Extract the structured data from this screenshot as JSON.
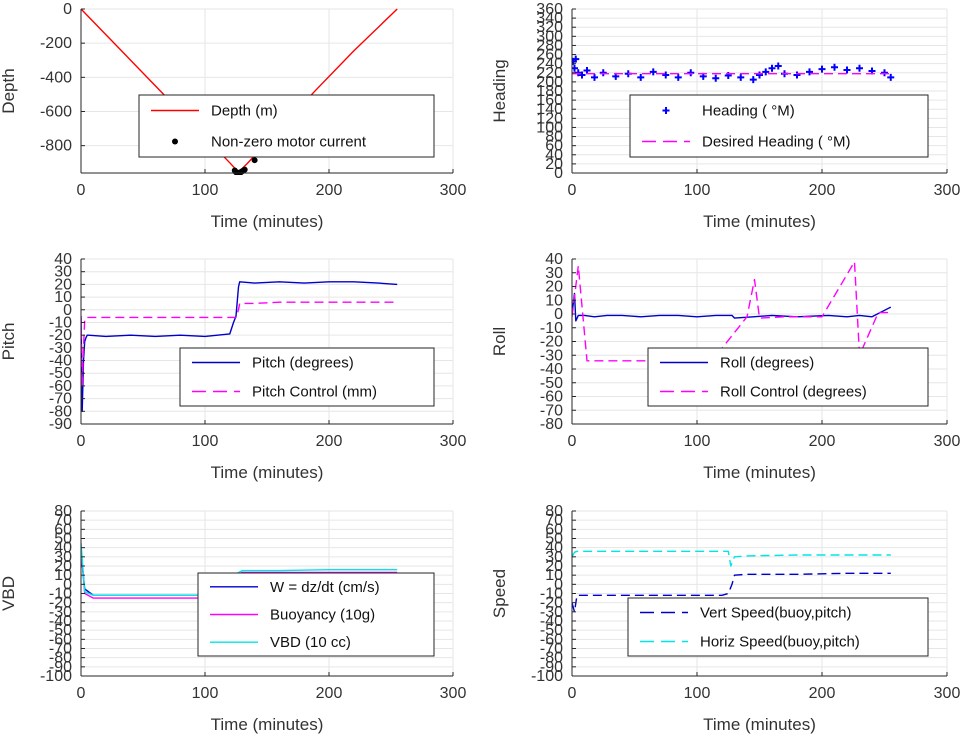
{
  "colors": {
    "depth": "#ff0000",
    "motor": "#000000",
    "heading": "#0000ff",
    "desired": "#ff00ff",
    "pitch": "#0000cc",
    "pitch_ctrl": "#ff00ff",
    "roll": "#0000cc",
    "roll_ctrl": "#ff00ff",
    "w": "#0000cc",
    "buoy": "#ff00ff",
    "vbd": "#00e5e5",
    "vert": "#0000cc",
    "horiz": "#00e5e5",
    "grid": "#e6e6e6",
    "axis": "#262626"
  },
  "chart_data": [
    {
      "id": "depth",
      "type": "line",
      "title": "",
      "xlabel": "Time (minutes)",
      "ylabel": "Depth",
      "xlim": [
        0,
        300
      ],
      "ylim": [
        -960,
        0
      ],
      "xticks": [
        0,
        100,
        200,
        300
      ],
      "yticks": [
        0,
        -200,
        -400,
        -600,
        -800
      ],
      "grid": true,
      "legend_position": "center",
      "series": [
        {
          "name": "Depth (m)",
          "style": "line",
          "color": "depth",
          "x": [
            0,
            30,
            60,
            90,
            120,
            127,
            134,
            160,
            190,
            220,
            255
          ],
          "y": [
            0,
            -225,
            -450,
            -675,
            -900,
            -955,
            -905,
            -700,
            -470,
            -245,
            0
          ]
        },
        {
          "name": "Non-zero motor current",
          "style": "dot",
          "color": "motor",
          "x": [
            124,
            125,
            126,
            127,
            128,
            129,
            130,
            131,
            132,
            140
          ],
          "y": [
            -945,
            -955,
            -958,
            -960,
            -958,
            -955,
            -950,
            -945,
            -940,
            -885
          ]
        }
      ]
    },
    {
      "id": "heading",
      "type": "scatter",
      "title": "",
      "xlabel": "Time (minutes)",
      "ylabel": "Heading",
      "xlim": [
        0,
        300
      ],
      "ylim": [
        0,
        360
      ],
      "xticks": [
        0,
        100,
        200,
        300
      ],
      "yticks": [
        0,
        20,
        40,
        60,
        80,
        100,
        120,
        140,
        160,
        180,
        200,
        220,
        240,
        260,
        280,
        300,
        320,
        340,
        360
      ],
      "grid": true,
      "legend_position": "bottom-right",
      "series": [
        {
          "name": "Heading ( °M)",
          "style": "plus",
          "color": "heading",
          "x": [
            1,
            2,
            3,
            5,
            8,
            12,
            18,
            25,
            35,
            45,
            55,
            65,
            75,
            85,
            95,
            105,
            115,
            125,
            135,
            145,
            150,
            155,
            160,
            165,
            170,
            180,
            190,
            200,
            210,
            220,
            230,
            240,
            250,
            255
          ],
          "y": [
            245,
            230,
            250,
            220,
            215,
            225,
            210,
            220,
            212,
            218,
            210,
            222,
            215,
            210,
            220,
            212,
            208,
            214,
            210,
            205,
            215,
            222,
            230,
            235,
            218,
            215,
            222,
            228,
            232,
            226,
            230,
            224,
            220,
            210
          ]
        },
        {
          "name": "Desired Heading ( °M)",
          "style": "dash",
          "color": "desired",
          "x": [
            0,
            255
          ],
          "y": [
            218,
            218
          ]
        }
      ]
    },
    {
      "id": "pitch",
      "type": "line",
      "title": "",
      "xlabel": "Time (minutes)",
      "ylabel": "Pitch",
      "xlim": [
        0,
        300
      ],
      "ylim": [
        -90,
        40
      ],
      "xticks": [
        0,
        100,
        200,
        300
      ],
      "yticks": [
        40,
        30,
        20,
        10,
        0,
        -10,
        -20,
        -30,
        -40,
        -50,
        -60,
        -70,
        -80,
        -90
      ],
      "grid": true,
      "legend_position": "bottom-right",
      "series": [
        {
          "name": "Pitch (degrees)",
          "style": "line",
          "color": "pitch",
          "x": [
            0,
            1,
            2,
            3,
            4,
            5,
            6,
            20,
            40,
            60,
            80,
            100,
            120,
            123,
            125,
            127,
            128,
            140,
            160,
            180,
            200,
            220,
            240,
            255
          ],
          "y": [
            -5,
            -80,
            -40,
            -25,
            -22,
            -20,
            -20,
            -21,
            -20,
            -21,
            -20,
            -21,
            -19,
            -10,
            -5,
            18,
            22,
            21,
            22,
            21,
            22,
            22,
            21,
            20
          ]
        },
        {
          "name": "Pitch Control (mm)",
          "style": "dash",
          "color": "pitch_ctrl",
          "x": [
            0,
            1,
            2,
            3,
            4,
            125,
            127,
            128,
            140,
            160,
            180,
            200,
            220,
            240,
            255
          ],
          "y": [
            -5,
            -60,
            -30,
            -8,
            -6,
            -6,
            0,
            5,
            5,
            6,
            6,
            6,
            6,
            6,
            6
          ]
        }
      ]
    },
    {
      "id": "roll",
      "type": "line",
      "title": "",
      "xlabel": "Time (minutes)",
      "ylabel": "Roll",
      "xlim": [
        0,
        300
      ],
      "ylim": [
        -80,
        40
      ],
      "xticks": [
        0,
        100,
        200,
        300
      ],
      "yticks": [
        40,
        30,
        20,
        10,
        0,
        -10,
        -20,
        -30,
        -40,
        -50,
        -60,
        -70,
        -80
      ],
      "grid": true,
      "legend_position": "bottom-right",
      "series": [
        {
          "name": "Roll (degrees)",
          "style": "line",
          "color": "roll",
          "x": [
            0,
            2,
            3,
            5,
            10,
            18,
            28,
            40,
            55,
            70,
            85,
            100,
            115,
            128,
            130,
            145,
            160,
            180,
            205,
            220,
            230,
            240,
            255
          ],
          "y": [
            0,
            15,
            -5,
            -1,
            -1,
            -2,
            -1,
            -1,
            -2,
            -1,
            -1,
            -2,
            -1,
            -1,
            -3,
            -2,
            -1,
            -2,
            -1,
            -2,
            -1,
            -2,
            5
          ]
        },
        {
          "name": "Roll Control (degrees)",
          "style": "dash",
          "color": "roll_ctrl",
          "x": [
            0,
            5,
            12,
            24,
            36,
            52,
            60,
            70,
            80,
            90,
            100,
            112,
            140,
            146,
            150,
            170,
            200,
            226,
            230,
            245,
            255
          ],
          "y": [
            -2,
            35,
            -34,
            -34,
            -34,
            -34,
            -34,
            -34,
            -34,
            -34,
            -34,
            -34,
            -2,
            25,
            -3,
            -2,
            -2,
            38,
            -30,
            1,
            1
          ]
        }
      ]
    },
    {
      "id": "vbd",
      "type": "line",
      "title": "",
      "xlabel": "Time (minutes)",
      "ylabel": "VBD",
      "xlim": [
        0,
        300
      ],
      "ylim": [
        -100,
        80
      ],
      "xticks": [
        0,
        100,
        200,
        300
      ],
      "yticks": [
        80,
        70,
        60,
        50,
        40,
        30,
        20,
        10,
        0,
        -10,
        -20,
        -30,
        -40,
        -50,
        -60,
        -70,
        -80,
        -90,
        -100
      ],
      "ytick_labels": [
        "80",
        "70",
        "60",
        "50",
        "40",
        "30",
        "20",
        "10",
        "0",
        "-10",
        "-20",
        "-30",
        "-40",
        "-50",
        "-60",
        "-70",
        "-80",
        "-90",
        "-100"
      ],
      "grid": true,
      "legend_position": "bottom-right",
      "series": [
        {
          "name": "W = dz/dt (cm/s)",
          "style": "line",
          "color": "w",
          "x": [
            0,
            3,
            10,
            40,
            80,
            120,
            125,
            127,
            130,
            160,
            200,
            255
          ],
          "y": [
            35,
            -5,
            -12,
            -12,
            -12,
            -12,
            -8,
            8,
            11,
            11,
            12,
            12
          ]
        },
        {
          "name": "Buoyancy (10g)",
          "style": "line",
          "color": "buoy",
          "x": [
            0,
            3,
            10,
            40,
            80,
            120,
            124,
            126,
            130,
            160,
            200,
            255
          ],
          "y": [
            40,
            -10,
            -15,
            -15,
            -15,
            -15,
            -5,
            10,
            13,
            13,
            13,
            13
          ]
        },
        {
          "name": "VBD (10 cc)",
          "style": "line",
          "color": "vbd",
          "x": [
            0,
            3,
            10,
            40,
            80,
            120,
            124,
            126,
            130,
            160,
            200,
            255
          ],
          "y": [
            45,
            -8,
            -12,
            -12,
            -12,
            -12,
            -3,
            12,
            15,
            15,
            16,
            16
          ]
        }
      ]
    },
    {
      "id": "speed",
      "type": "line",
      "title": "",
      "xlabel": "Time (minutes)",
      "ylabel": "Speed",
      "xlim": [
        0,
        300
      ],
      "ylim": [
        -100,
        80
      ],
      "xticks": [
        0,
        100,
        200,
        300
      ],
      "yticks": [
        80,
        70,
        60,
        50,
        40,
        30,
        20,
        10,
        0,
        -10,
        -20,
        -30,
        -40,
        -50,
        -60,
        -70,
        -80,
        -90,
        -100
      ],
      "ytick_labels": [
        "80",
        "70",
        "60",
        "50",
        "40",
        "30",
        "20",
        "10",
        "0",
        "-10",
        "-20",
        "-30",
        "-40",
        "-50",
        "-60",
        "-70",
        "-80",
        "-90",
        "-100"
      ],
      "grid": true,
      "legend_position": "bottom-right",
      "series": [
        {
          "name": "Vert Speed(buoy,pitch)",
          "style": "dash",
          "color": "vert",
          "x": [
            0,
            2,
            4,
            10,
            40,
            80,
            120,
            125,
            128,
            130,
            140,
            180,
            220,
            255
          ],
          "y": [
            -20,
            -30,
            -12,
            -12,
            -12,
            -12,
            -12,
            -10,
            0,
            10,
            11,
            11,
            12,
            12
          ]
        },
        {
          "name": "Horiz Speed(buoy,pitch)",
          "style": "dash",
          "color": "horiz",
          "x": [
            0,
            2,
            4,
            10,
            40,
            80,
            120,
            125,
            127,
            130,
            140,
            180,
            220,
            255
          ],
          "y": [
            30,
            35,
            36,
            36,
            36,
            36,
            36,
            36,
            20,
            30,
            31,
            32,
            32,
            32
          ]
        }
      ]
    }
  ]
}
